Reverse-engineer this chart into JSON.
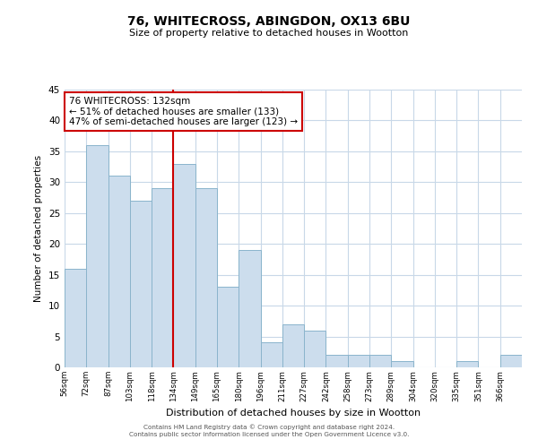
{
  "title": "76, WHITECROSS, ABINGDON, OX13 6BU",
  "subtitle": "Size of property relative to detached houses in Wootton",
  "xlabel": "Distribution of detached houses by size in Wootton",
  "ylabel": "Number of detached properties",
  "bar_color": "#ccdded",
  "bar_edge_color": "#8ab4cc",
  "background_color": "#ffffff",
  "grid_color": "#c8d8e8",
  "annotation_line_color": "#cc0000",
  "annotation_box_edge_color": "#cc0000",
  "annotation_text_line1": "76 WHITECROSS: 132sqm",
  "annotation_text_line2": "← 51% of detached houses are smaller (133)",
  "annotation_text_line3": "47% of semi-detached houses are larger (123) →",
  "ylim": [
    0,
    45
  ],
  "yticks": [
    0,
    5,
    10,
    15,
    20,
    25,
    30,
    35,
    40,
    45
  ],
  "counts": [
    16,
    36,
    31,
    27,
    29,
    33,
    29,
    13,
    19,
    4,
    7,
    6,
    2,
    2,
    2,
    1,
    0,
    0,
    1,
    0,
    2
  ],
  "tick_labels": [
    "56sqm",
    "72sqm",
    "87sqm",
    "103sqm",
    "118sqm",
    "134sqm",
    "149sqm",
    "165sqm",
    "180sqm",
    "196sqm",
    "211sqm",
    "227sqm",
    "242sqm",
    "258sqm",
    "273sqm",
    "289sqm",
    "304sqm",
    "320sqm",
    "335sqm",
    "351sqm",
    "366sqm"
  ],
  "vline_index": 5,
  "footer_line1": "Contains HM Land Registry data © Crown copyright and database right 2024.",
  "footer_line2": "Contains public sector information licensed under the Open Government Licence v3.0."
}
